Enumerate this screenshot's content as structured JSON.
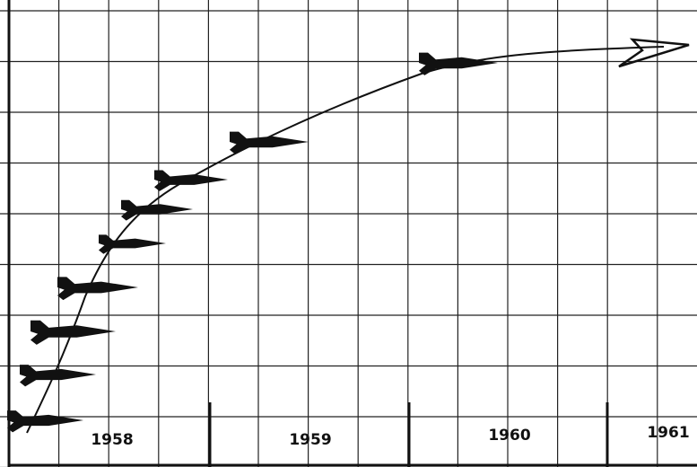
{
  "year_labels": [
    "1958",
    "1959",
    "1960",
    "1961"
  ]
}
